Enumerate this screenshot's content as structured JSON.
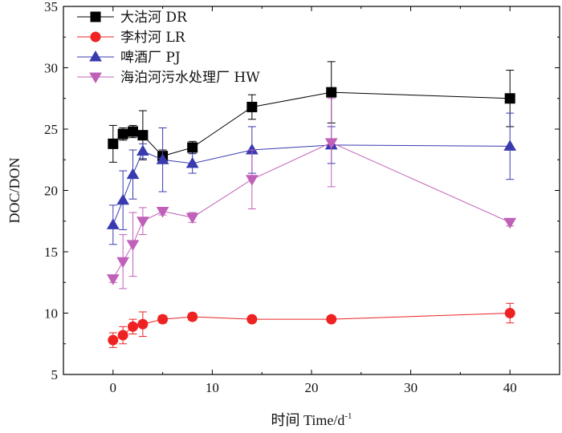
{
  "chart_data": {
    "type": "line",
    "title": "",
    "xlabel": "时间 Time/d",
    "xlabel_superscript": "-1",
    "ylabel": "DOC/DON",
    "xlim": [
      -5,
      45
    ],
    "ylim": [
      5,
      35
    ],
    "xticks": [
      0,
      10,
      20,
      30,
      40
    ],
    "yticks": [
      5,
      10,
      15,
      20,
      25,
      30,
      35
    ],
    "grid": false,
    "legend_position": "top-left",
    "series": [
      {
        "name": "大沽河 DR",
        "color": "#000000",
        "marker": "square",
        "x": [
          0,
          1,
          2,
          3,
          5,
          8,
          14,
          22,
          40
        ],
        "values": [
          23.8,
          24.6,
          24.8,
          24.5,
          22.8,
          23.5,
          26.8,
          28.0,
          27.5
        ],
        "errors": [
          1.5,
          0.5,
          0.5,
          2.0,
          0.5,
          0.5,
          1.0,
          2.5,
          2.3
        ]
      },
      {
        "name": "李村河 LR",
        "color": "#ee2222",
        "marker": "circle",
        "x": [
          0,
          1,
          2,
          3,
          5,
          8,
          14,
          22,
          40
        ],
        "values": [
          7.8,
          8.2,
          8.9,
          9.1,
          9.5,
          9.7,
          9.5,
          9.5,
          10.0
        ],
        "errors": [
          0.6,
          0.7,
          0.6,
          1.0,
          0.3,
          0.3,
          0.2,
          0.2,
          0.8
        ]
      },
      {
        "name": "啤酒厂 PJ",
        "color": "#3a3ab0",
        "marker": "triangle-up",
        "x": [
          0,
          1,
          2,
          3,
          5,
          8,
          14,
          22,
          40
        ],
        "values": [
          17.2,
          19.2,
          21.3,
          23.2,
          22.5,
          22.2,
          23.3,
          23.7,
          23.6
        ],
        "errors": [
          1.6,
          2.4,
          2.0,
          0.6,
          2.6,
          0.8,
          1.9,
          1.5,
          2.7
        ]
      },
      {
        "name": "海泊河污水处理厂 HW",
        "color": "#c060b8",
        "marker": "triangle-down",
        "x": [
          0,
          1,
          2,
          3,
          5,
          8,
          14,
          22,
          40
        ],
        "values": [
          12.8,
          14.2,
          15.6,
          17.5,
          18.3,
          17.8,
          20.9,
          23.9,
          17.4
        ],
        "errors": [
          0.3,
          2.2,
          2.6,
          1.1,
          0.3,
          0.4,
          2.4,
          3.6,
          0.3
        ]
      }
    ]
  }
}
